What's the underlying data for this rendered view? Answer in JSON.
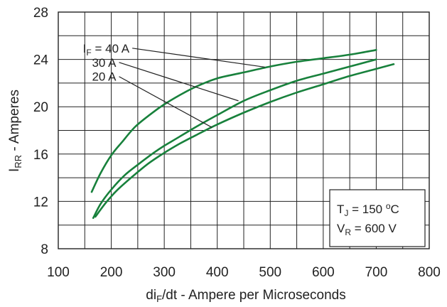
{
  "chart_data": {
    "type": "line",
    "xlabel_parts": [
      "di",
      "F",
      "/dt - Ampere per Microseconds"
    ],
    "ylabel_parts": [
      "I",
      "RR",
      " - Amperes"
    ],
    "xlim": [
      100,
      800
    ],
    "ylim": [
      8,
      28
    ],
    "xticks": [
      100,
      200,
      300,
      400,
      500,
      600,
      700,
      800
    ],
    "yticks": [
      8,
      12,
      16,
      20,
      24,
      28
    ],
    "minor_grid_x_step": 50,
    "minor_grid_y_step": 2,
    "grid": true,
    "series": [
      {
        "name": "I_F = 40 A",
        "label_parts": [
          "I",
          "F",
          " = 40 A"
        ],
        "x": [
          163,
          180,
          200,
          220,
          245,
          275,
          300,
          330,
          360,
          400,
          450,
          500,
          550,
          600,
          650,
          700
        ],
        "y": [
          12.8,
          14.4,
          15.9,
          17.0,
          18.3,
          19.4,
          20.2,
          21.0,
          21.7,
          22.4,
          22.9,
          23.4,
          23.8,
          24.1,
          24.4,
          24.8
        ]
      },
      {
        "name": "30 A",
        "label_parts": [
          "30 A"
        ],
        "x": [
          166,
          180,
          200,
          225,
          250,
          280,
          300,
          330,
          360,
          400,
          450,
          500,
          550,
          600,
          650,
          700
        ],
        "y": [
          10.6,
          11.8,
          13.0,
          14.2,
          15.1,
          16.1,
          16.7,
          17.5,
          18.3,
          19.3,
          20.5,
          21.4,
          22.2,
          22.8,
          23.4,
          24.0
        ]
      },
      {
        "name": "20 A",
        "label_parts": [
          "20 A"
        ],
        "x": [
          170,
          190,
          210,
          240,
          270,
          300,
          330,
          360,
          400,
          450,
          500,
          550,
          600,
          650,
          700,
          733
        ],
        "y": [
          10.7,
          11.9,
          12.9,
          14.1,
          15.2,
          16.1,
          16.9,
          17.6,
          18.5,
          19.5,
          20.4,
          21.2,
          21.9,
          22.6,
          23.2,
          23.6
        ]
      }
    ],
    "label_pointers": [
      {
        "series": 0,
        "text_x": 237,
        "text_y": 24.95,
        "to_x": 490,
        "to_y": 23.35
      },
      {
        "series": 1,
        "text_x": 212,
        "text_y": 23.75,
        "to_x": 440,
        "to_y": 20.5
      },
      {
        "series": 2,
        "text_x": 212,
        "text_y": 22.55,
        "to_x": 390,
        "to_y": 18.25
      }
    ],
    "conditions": [
      {
        "parts": [
          "T",
          "J",
          " = 150 ",
          "o",
          "C"
        ]
      },
      {
        "parts": [
          "V",
          "R",
          " = 600 V"
        ]
      }
    ],
    "colors": {
      "line": "#18813c",
      "grid": "#222222",
      "text": "#222222"
    }
  }
}
